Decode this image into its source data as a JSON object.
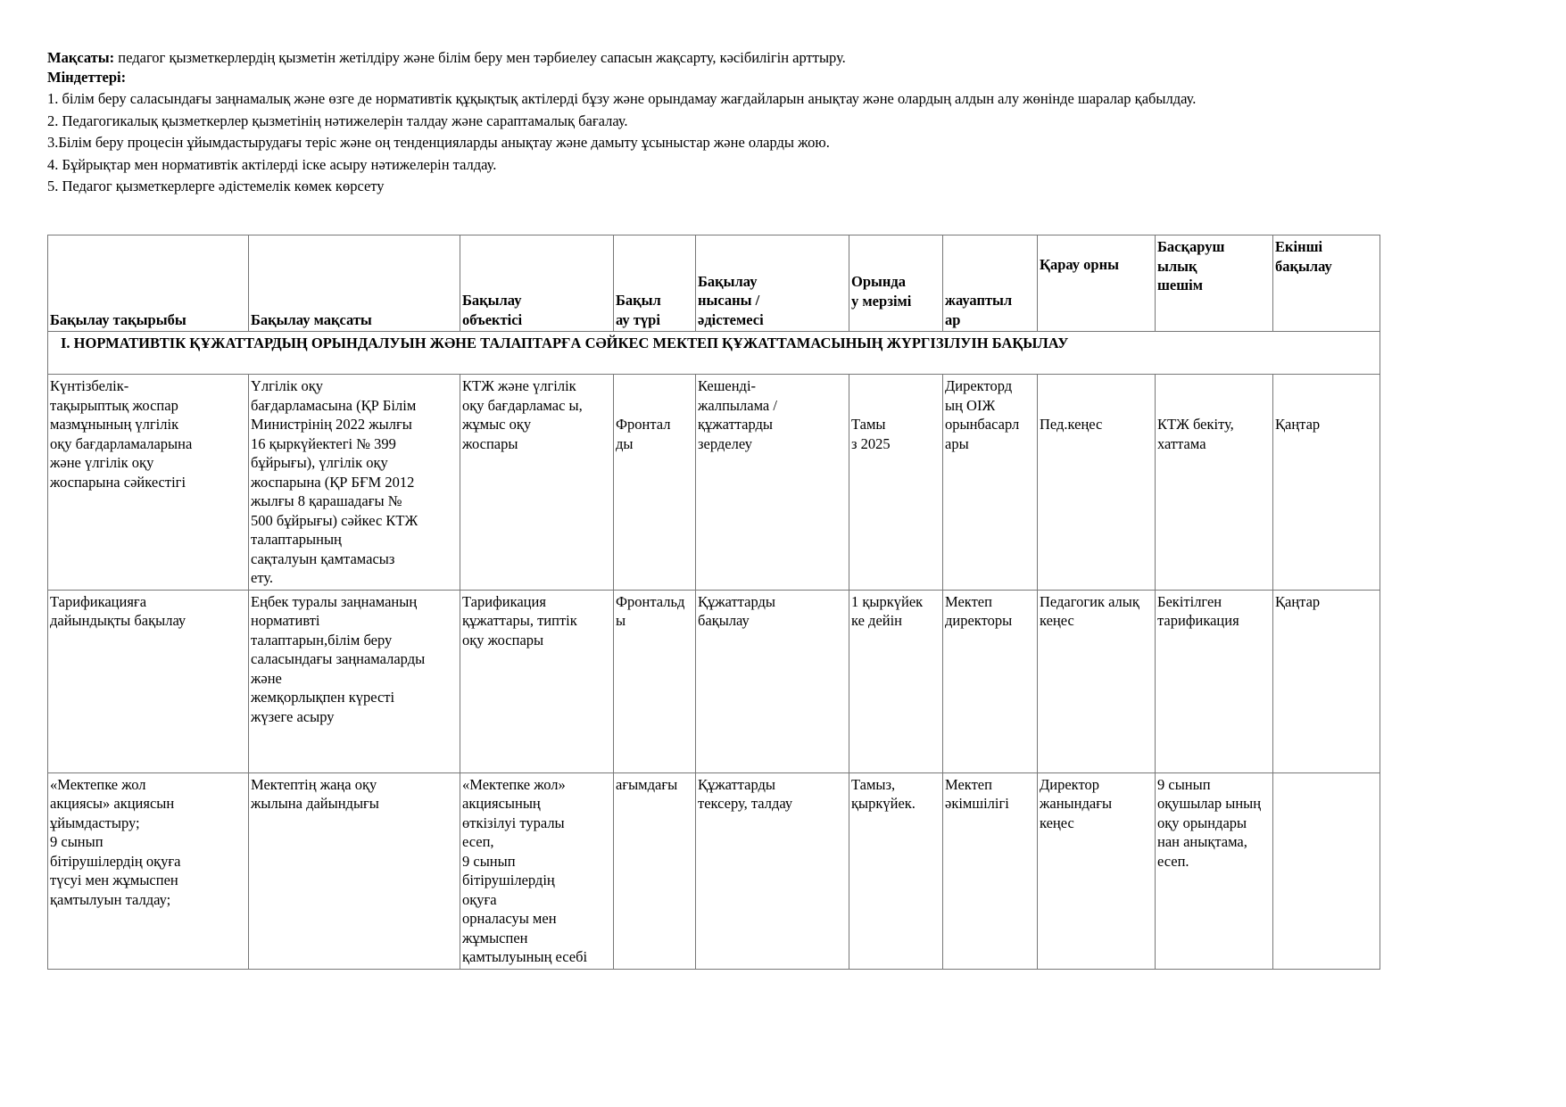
{
  "intro": {
    "goal_label": "Мақсаты:",
    "goal_text": " педагог қызметкерлердің қызметін жетілдіру және білім беру мен тәрбиелеу сапасын жақсарту, кәсібилігін арттыру.",
    "tasks_label": "Міндеттері:",
    "tasks": [
      "1.  білім беру саласындағы заңнамалық және өзге де нормативтік құқықтық актілерді бұзу және орындамау жағдайларын анықтау және олардың алдын алу жөнінде шаралар қабылдау.",
      "2.  Педагогикалық қызметкерлер қызметінің нәтижелерін талдау және сараптамалық бағалау.",
      "3.Білім беру процесін ұйымдастырудағы теріс және оң тенденцияларды анықтау және дамыту ұсыныстар және оларды жою.",
      "4.  Бұйрықтар мен нормативтік актілерді іске асыру нәтижелерін талдау.",
      "5.  Педагог қызметкерлерге әдістемелік көмек көрсету"
    ]
  },
  "table": {
    "headers": [
      "Бақылау тақырыбы",
      "      Бақылау мақсаты",
      "   Бақылау\n   объектісі",
      " Бақыл\n ау түрі",
      "   Бақылау\n   нысаны /\n   әдістемесі",
      " Орында\n у мерзімі",
      " жауаптыл\n ар",
      " Қарау орны",
      " Басқаруш\n   ылық\n   шешім",
      "    Екінші\n  бақылау"
    ],
    "section_title": "І. НОРМАТИВТІК ҚҰЖАТТАРДЫҢ ОРЫНДАЛУЫН ЖӘНЕ ТАЛАПТАРҒА СӘЙКЕС МЕКТЕП ҚҰЖАТТАМАСЫНЫҢ ЖҮРГІЗІЛУІН БАҚЫЛАУ",
    "rows": [
      [
        "  Күнтізбелік-\n тақырыптық жоспар\n мазмұнының үлгілік\n оқу бағдарламаларына\n және үлгілік оқу\n жоспарына сәйкестігі",
        "  Үлгілік оқу\n бағдарламасына (ҚР Білім\n Министрінің 2022 жылғы\n 16 қыркүйектегі № 399\n бұйрығы), үлгілік оқу\n жоспарына (ҚР БҒМ 2012\n жылғы 8 қарашадағы №\n 500 бұйрығы) сәйкес КТЖ\n талаптарының\n сақталуын қамтамасыз\n ету.",
        "  КТЖ және үлгілік\n оқу бағдарламас ы,\n жұмыс оқу\n жоспары",
        "\n\n  Фронтал\n  ды",
        "  Кешенді-\n жалпылама /\n құжаттарды\n зерделеу",
        "\n\n  Тамы\n  з 2025",
        " Директорд\n ың ОІЖ\n орынбасарл\n ары",
        "\n\n  Пед.кеңес",
        "\n\n  КТЖ бекіту,\n  хаттама",
        "\n\n  Қаңтар"
      ],
      [
        "  Тарификацияға\n  дайындықты бақылау",
        " Еңбек туралы заңнаманың\n нормативті\n талаптарын,білім беру\n саласындағы заңнамаларды\n және\n   жемқорлықпен күресті\n жүзеге асыру",
        " Тарификация\n құжаттары, типтік\n оқу жоспары",
        "Фронтальд\nы",
        "   Құжаттарды\n  бақылау",
        "1 қыркүйек\nке дейін",
        " Мектеп\n директоры",
        "Педагогик алық\nкеңес",
        "Бекітілген\nтарификация",
        "Қаңтар"
      ],
      [
        "  «Мектепке жол\n  акциясы» акциясын\n  ұйымдастыру;\n  9 сынып\n      бітірушілердің оқуға\n     түсуі мен жұмыспен\n  қамтылуын талдау;",
        " Мектептің жаңа оқу\n жылына дайындығы",
        "   «Мектепке жол»\n   акциясының\n   өткізілуі туралы\n   есеп,\n               9 сынып\n     бітірушілердің\n    оқуға\n орналасуы мен\n жұмыспен\n қамтылуының есебі",
        "ағымдағы",
        "   Құжаттарды\n   тексеру, талдау",
        "Тамыз,\nқыркүйек.",
        " Мектеп\n әкімшілігі",
        "Директор\nжанындағы\nкеңес",
        "9 сынып\nоқушылар ының\nоқу орындары\nнан анықтама,\nесеп.",
        ""
      ]
    ]
  }
}
